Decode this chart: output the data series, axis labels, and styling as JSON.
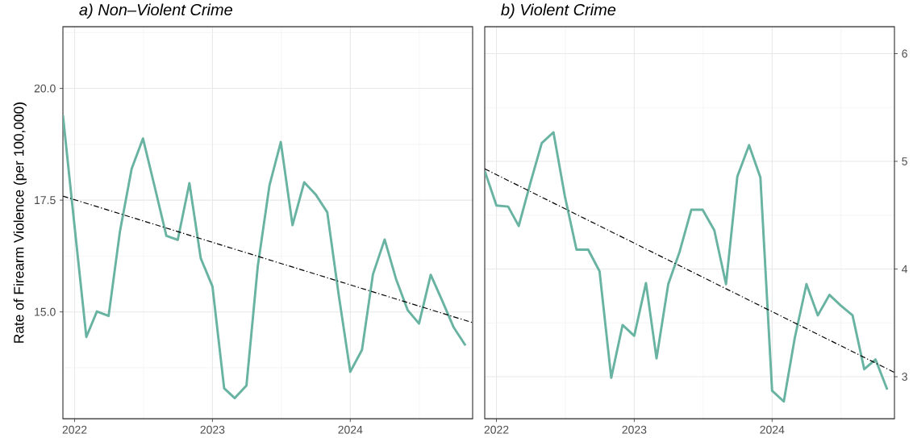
{
  "chart_data": [
    {
      "type": "line",
      "title": "a) Non–Violent Crime",
      "ylabel": "Rate of Firearm Violence (per 100,000)",
      "x": [
        "2021-12",
        "2022-01",
        "2022-02",
        "2022-03",
        "2022-04",
        "2022-05",
        "2022-06",
        "2022-07",
        "2022-08",
        "2022-09",
        "2022-10",
        "2022-11",
        "2022-12",
        "2023-01",
        "2023-02",
        "2023-03",
        "2023-04",
        "2023-05",
        "2023-06",
        "2023-07",
        "2023-08",
        "2023-09",
        "2023-10",
        "2023-11",
        "2023-12",
        "2024-01",
        "2024-02",
        "2024-03",
        "2024-04",
        "2024-05",
        "2024-06",
        "2024-07",
        "2024-08",
        "2024-09",
        "2024-10",
        "2024-11"
      ],
      "series": [
        {
          "color": "#69b3a2",
          "values": [
            19.4,
            16.9,
            14.44,
            15.01,
            14.91,
            16.8,
            18.2,
            18.88,
            17.8,
            16.7,
            16.61,
            17.88,
            16.2,
            15.57,
            13.29,
            13.07,
            13.35,
            16.02,
            17.83,
            18.8,
            16.94,
            17.9,
            17.63,
            17.23,
            15.4,
            13.66,
            14.15,
            15.84,
            16.62,
            15.74,
            15.04,
            14.74,
            15.83,
            15.24,
            14.65,
            14.25
          ]
        },
        {
          "type": "line",
          "color": "#000000",
          "line_style": "dashed",
          "x": [
            "2021-12-01",
            "2024-11-20"
          ],
          "values": [
            17.59,
            14.76
          ]
        }
      ],
      "xlim": [
        "2021-12-01",
        "2024-11-20"
      ],
      "ylim": [
        12.61,
        21.38
      ],
      "xticks": [
        "2022",
        "2023",
        "2024"
      ],
      "yticks": [
        {
          "value": 15,
          "label": "15.0"
        },
        {
          "value": 17.5,
          "label": "17.5"
        },
        {
          "value": 20,
          "label": "20.0"
        }
      ],
      "grid": true
    },
    {
      "type": "line",
      "title": "b) Violent Crime",
      "x": [
        "2021-12",
        "2022-01",
        "2022-02",
        "2022-03",
        "2022-04",
        "2022-05",
        "2022-06",
        "2022-07",
        "2022-08",
        "2022-09",
        "2022-10",
        "2022-11",
        "2022-12",
        "2023-01",
        "2023-02",
        "2023-03",
        "2023-04",
        "2023-05",
        "2023-06",
        "2023-07",
        "2023-08",
        "2023-09",
        "2023-10",
        "2023-11",
        "2023-12",
        "2024-01",
        "2024-02",
        "2024-03",
        "2024-04",
        "2024-05",
        "2024-06",
        "2024-07",
        "2024-08",
        "2024-09",
        "2024-10",
        "2024-11"
      ],
      "series": [
        {
          "color": "#69b3a2",
          "values": [
            4.91,
            4.59,
            4.58,
            4.4,
            4.8,
            5.17,
            5.27,
            4.68,
            4.18,
            4.18,
            3.98,
            2.99,
            3.48,
            3.38,
            3.87,
            3.17,
            3.86,
            4.16,
            4.55,
            4.55,
            4.36,
            3.86,
            4.86,
            5.15,
            4.85,
            2.87,
            2.77,
            3.36,
            3.86,
            3.57,
            3.76,
            3.66,
            3.57,
            3.07,
            3.16,
            2.88
          ]
        },
        {
          "type": "line",
          "color": "#000000",
          "line_style": "dashed",
          "x": [
            "2021-12-01",
            "2024-11-20"
          ],
          "values": [
            4.93,
            3.04
          ]
        }
      ],
      "xlim": [
        "2021-12-01",
        "2024-11-20"
      ],
      "ylim": [
        2.61,
        6.25
      ],
      "xticks": [
        "2022",
        "2023",
        "2024"
      ],
      "yticks": [
        3,
        4,
        5,
        6
      ],
      "grid": true
    }
  ]
}
